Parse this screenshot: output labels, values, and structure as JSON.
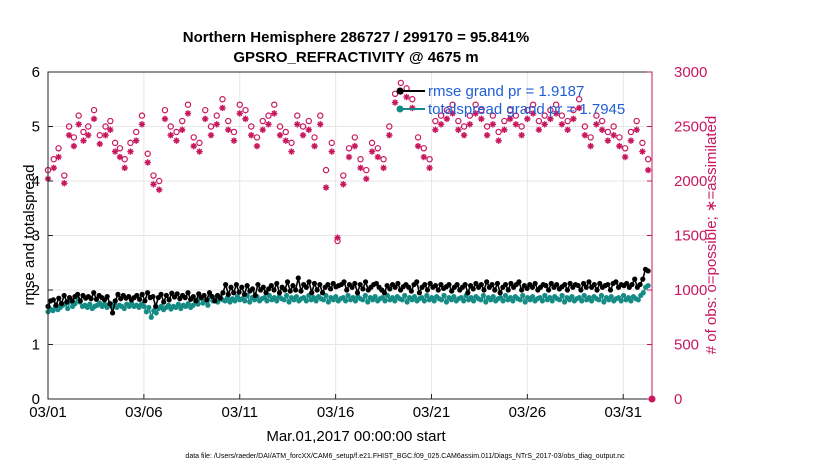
{
  "chart_data": {
    "type": "line",
    "title_line1": "Northern Hemisphere 286727 / 299170 = 95.841%",
    "title_line2": "GPSRO_REFRACTIVITY @ 4675 m",
    "xlabel": "Mar.01,2017 00:00:00 start",
    "ylabel": "rmse and totalspread",
    "ylabel_right": "# of obs: o=possible; ∗=assimilated",
    "footnote": "data file: /Users/raeder/DAI/ATM_forcXX/CAM6_setup/f.e21.FHIST_BGC.f09_025.CAM6assim.011/Diags_NTrS_2017-03/obs_diag_output.nc",
    "xlim": [
      0,
      31.5
    ],
    "ylim": [
      0,
      6
    ],
    "ylim_right": [
      0,
      3000
    ],
    "x_tick_values": [
      0,
      5,
      10,
      15,
      20,
      25,
      30
    ],
    "x_tick_labels": [
      "03/01",
      "03/06",
      "03/11",
      "03/16",
      "03/21",
      "03/26",
      "03/31"
    ],
    "y_ticks": [
      "0",
      "1",
      "2",
      "3",
      "4",
      "5",
      "6"
    ],
    "y_right_ticks": [
      "0",
      "500",
      "1000",
      "1500",
      "2000",
      "2500",
      "3000"
    ],
    "grid": true,
    "legend_position": "top-right",
    "colors": {
      "rmse": "#000000",
      "spread": "#148b84",
      "obs": "#c8175e",
      "legend_text": "#1f5fd6",
      "grid": "#e6e6e6"
    },
    "legend": [
      {
        "name": "rmse grand pr = 1.9187"
      },
      {
        "name": "totalspread grand pr = 1.7945"
      }
    ],
    "series": [
      {
        "name": "rmse",
        "axis": "left",
        "values": [
          1.7,
          1.8,
          1.82,
          1.72,
          1.85,
          1.75,
          1.9,
          1.78,
          1.86,
          1.8,
          1.88,
          1.92,
          1.8,
          1.9,
          1.85,
          1.88,
          1.84,
          1.95,
          1.83,
          1.9,
          1.86,
          1.82,
          1.88,
          1.75,
          1.58,
          1.8,
          1.92,
          1.84,
          1.9,
          1.85,
          1.88,
          1.82,
          1.86,
          1.9,
          1.83,
          1.92,
          1.8,
          1.95,
          1.86,
          1.88,
          1.7,
          1.86,
          1.92,
          1.78,
          1.9,
          1.82,
          1.94,
          1.87,
          1.93,
          1.84,
          1.9,
          1.86,
          1.95,
          1.83,
          1.88,
          1.8,
          1.93,
          1.86,
          1.9,
          1.82,
          1.95,
          1.88,
          1.8,
          1.9,
          1.85,
          1.95,
          2.1,
          1.92,
          2.05,
          1.95,
          2.1,
          1.96,
          2.05,
          1.92,
          2.08,
          1.98,
          2.02,
          1.9,
          2.1,
          2.0,
          2.05,
          1.95,
          2.02,
          2.08,
          2.0,
          2.12,
          1.95,
          2.05,
          2.0,
          2.15,
          1.98,
          2.08,
          2.0,
          2.22,
          1.98,
          2.1,
          2.05,
          2.15,
          1.95,
          2.12,
          2.0,
          2.1,
          1.95,
          2.05,
          2.1,
          2.02,
          2.12,
          2.06,
          2.08,
          2.1,
          2.15,
          2.0,
          2.1,
          2.05,
          2.12,
          1.95,
          2.1,
          2.02,
          2.15,
          2.0,
          2.05,
          2.1,
          2.12,
          2.05,
          2.0,
          1.95,
          2.08,
          2.02,
          2.1,
          2.05,
          2.12,
          2.0,
          2.06,
          2.1,
          2.05,
          1.98,
          2.1,
          2.15,
          1.95,
          2.05,
          2.1,
          2.0,
          2.12,
          2.05,
          2.08,
          2.0,
          2.1,
          2.03,
          2.06,
          2.1,
          1.98,
          2.05,
          2.1,
          2.0,
          2.05,
          2.1,
          1.95,
          2.08,
          2.02,
          2.12,
          2.05,
          2.1,
          2.0,
          2.15,
          2.05,
          2.1,
          2.0,
          2.12,
          1.95,
          2.05,
          2.1,
          2.0,
          2.12,
          2.05,
          2.1,
          2.15,
          2.0,
          2.08,
          2.03,
          2.1,
          2.05,
          2.12,
          2.0,
          2.05,
          2.1,
          2.08,
          2.0,
          2.12,
          2.05,
          2.1,
          2.02,
          2.06,
          2.1,
          2.0,
          2.12,
          2.05,
          2.1,
          2.08,
          2.0,
          2.12,
          2.05,
          2.15,
          2.05,
          2.1,
          2.0,
          2.12,
          2.05,
          2.08,
          2.1,
          2.0,
          2.12,
          2.15,
          2.05,
          2.1,
          2.08,
          2.12,
          2.05,
          2.1,
          2.2,
          2.05,
          2.1,
          2.2,
          2.38,
          2.35
        ]
      },
      {
        "name": "totalspread",
        "axis": "left",
        "values": [
          1.6,
          1.65,
          1.62,
          1.7,
          1.64,
          1.68,
          1.72,
          1.75,
          1.66,
          1.8,
          1.7,
          1.75,
          1.85,
          1.78,
          1.7,
          1.72,
          1.68,
          1.74,
          1.66,
          1.7,
          1.72,
          1.76,
          1.7,
          1.74,
          1.68,
          1.72,
          1.7,
          1.75,
          1.68,
          1.72,
          1.7,
          1.66,
          1.74,
          1.7,
          1.76,
          1.7,
          1.72,
          1.68,
          1.74,
          1.7,
          1.6,
          1.68,
          1.5,
          1.62,
          1.58,
          1.66,
          1.7,
          1.64,
          1.68,
          1.72,
          1.65,
          1.7,
          1.68,
          1.74,
          1.66,
          1.72,
          1.7,
          1.75,
          1.68,
          1.72,
          1.8,
          1.74,
          1.85,
          1.76,
          1.8,
          1.72,
          1.9,
          1.8,
          1.85,
          1.78,
          1.88,
          1.82,
          1.8,
          1.86,
          1.78,
          1.84,
          1.8,
          1.88,
          1.82,
          1.84,
          1.8,
          1.9,
          1.78,
          1.86,
          1.82,
          1.88,
          1.8,
          1.84,
          1.86,
          1.8,
          1.9,
          1.82,
          1.86,
          1.8,
          1.88,
          1.84,
          1.82,
          1.9,
          1.78,
          1.86,
          1.82,
          1.88,
          1.8,
          1.84,
          1.86,
          1.8,
          1.9,
          1.82,
          1.86,
          1.8,
          1.88,
          1.84,
          1.82,
          1.9,
          1.78,
          1.86,
          1.82,
          1.88,
          1.8,
          1.84,
          1.86,
          1.8,
          1.9,
          1.82,
          1.86,
          1.8,
          1.88,
          1.84,
          1.82,
          1.9,
          1.78,
          1.86,
          1.82,
          1.88,
          1.8,
          1.84,
          1.86,
          1.8,
          1.9,
          1.82,
          1.86,
          1.8,
          1.88,
          1.84,
          1.82,
          1.9,
          1.78,
          1.86,
          1.82,
          1.88,
          1.8,
          1.84,
          1.86,
          1.8,
          1.9,
          1.82,
          1.86,
          1.8,
          1.88,
          1.84,
          1.82,
          1.9,
          1.78,
          1.86,
          1.82,
          1.88,
          1.8,
          1.84,
          1.86,
          1.8,
          1.9,
          1.82,
          1.86,
          1.8,
          1.88,
          1.84,
          1.82,
          1.9,
          1.78,
          1.86,
          1.82,
          1.88,
          1.8,
          1.84,
          1.86,
          1.8,
          1.9,
          1.82,
          1.86,
          1.8,
          1.88,
          1.84,
          1.82,
          1.9,
          1.78,
          1.86,
          1.82,
          1.88,
          1.8,
          1.84,
          1.86,
          1.8,
          1.9,
          1.82,
          1.86,
          1.8,
          1.88,
          1.84,
          1.82,
          1.9,
          1.78,
          1.86,
          1.82,
          1.88,
          1.8,
          1.84,
          1.86,
          1.8,
          1.9,
          1.82,
          1.86,
          1.8,
          1.88,
          1.84,
          1.82,
          1.9,
          1.78,
          1.86,
          1.82,
          1.88,
          1.8,
          1.84,
          1.86,
          1.8,
          1.9,
          1.82,
          1.86,
          1.8,
          1.88,
          1.84,
          1.82,
          1.9,
          1.95,
          2.05,
          2.08
        ]
      },
      {
        "name": "obs_possible",
        "axis": "right",
        "marker": "o",
        "x": [
          0.0,
          0.3,
          0.55,
          0.85,
          1.1,
          1.35,
          1.6,
          1.85,
          2.1,
          2.4,
          2.7,
          3.0,
          3.25,
          3.5,
          3.75,
          4.0,
          4.3,
          4.6,
          4.9,
          5.2,
          5.5,
          5.8,
          6.1,
          6.4,
          6.7,
          7.0,
          7.3,
          7.6,
          7.9,
          8.2,
          8.5,
          8.8,
          9.1,
          9.4,
          9.7,
          10.0,
          10.3,
          10.6,
          10.9,
          11.2,
          11.5,
          11.8,
          12.1,
          12.4,
          12.7,
          13.0,
          13.3,
          13.6,
          13.9,
          14.2,
          14.5,
          14.8,
          15.1,
          15.4,
          15.7,
          16.0,
          16.3,
          16.6,
          16.9,
          17.2,
          17.5,
          17.8,
          18.1,
          18.4,
          18.7,
          19.0,
          19.3,
          19.6,
          19.9,
          20.2,
          20.5,
          20.8,
          21.1,
          21.4,
          21.7,
          22.0,
          22.3,
          22.6,
          22.9,
          23.2,
          23.5,
          23.8,
          24.1,
          24.4,
          24.7,
          25.0,
          25.3,
          25.6,
          25.9,
          26.2,
          26.5,
          26.8,
          27.1,
          27.4,
          27.7,
          28.0,
          28.3,
          28.6,
          28.9,
          29.2,
          29.5,
          29.8,
          30.1,
          30.4,
          30.7,
          31.0,
          31.3
        ],
        "values": [
          2100,
          2200,
          2300,
          2050,
          2500,
          2400,
          2600,
          2450,
          2500,
          2650,
          2420,
          2500,
          2550,
          2350,
          2300,
          2200,
          2350,
          2450,
          2600,
          2250,
          2050,
          2000,
          2650,
          2500,
          2450,
          2550,
          2700,
          2400,
          2350,
          2650,
          2500,
          2600,
          2750,
          2550,
          2450,
          2700,
          2650,
          2500,
          2400,
          2550,
          2600,
          2700,
          2500,
          2450,
          2350,
          2600,
          2500,
          2550,
          2400,
          2600,
          2100,
          2350,
          1450,
          2050,
          2300,
          2400,
          2200,
          2100,
          2350,
          2300,
          2200,
          2500,
          2800,
          2900,
          2850,
          2750,
          2400,
          2300,
          2200,
          2550,
          2600,
          2650,
          2700,
          2550,
          2500,
          2600,
          2700,
          2650,
          2500,
          2600,
          2450,
          2550,
          2650,
          2600,
          2500,
          2650,
          2700,
          2550,
          2600,
          2650,
          2700,
          2600,
          2550,
          2650,
          2750,
          2500,
          2400,
          2600,
          2550,
          2450,
          2500,
          2400,
          2300,
          2450,
          2550,
          2350,
          2200
        ]
      },
      {
        "name": "obs_assimilated",
        "axis": "right",
        "marker": "*",
        "x": [
          0.0,
          0.3,
          0.55,
          0.85,
          1.1,
          1.35,
          1.6,
          1.85,
          2.1,
          2.4,
          2.7,
          3.0,
          3.25,
          3.5,
          3.75,
          4.0,
          4.3,
          4.6,
          4.9,
          5.2,
          5.5,
          5.8,
          6.1,
          6.4,
          6.7,
          7.0,
          7.3,
          7.6,
          7.9,
          8.2,
          8.5,
          8.8,
          9.1,
          9.4,
          9.7,
          10.0,
          10.3,
          10.6,
          10.9,
          11.2,
          11.5,
          11.8,
          12.1,
          12.4,
          12.7,
          13.0,
          13.3,
          13.6,
          13.9,
          14.2,
          14.5,
          14.8,
          15.1,
          15.4,
          15.7,
          16.0,
          16.3,
          16.6,
          16.9,
          17.2,
          17.5,
          17.8,
          18.1,
          18.4,
          18.7,
          19.0,
          19.3,
          19.6,
          19.9,
          20.2,
          20.5,
          20.8,
          21.1,
          21.4,
          21.7,
          22.0,
          22.3,
          22.6,
          22.9,
          23.2,
          23.5,
          23.8,
          24.1,
          24.4,
          24.7,
          25.0,
          25.3,
          25.6,
          25.9,
          26.2,
          26.5,
          26.8,
          27.1,
          27.4,
          27.7,
          28.0,
          28.3,
          28.6,
          28.9,
          29.2,
          29.5,
          29.8,
          30.1,
          30.4,
          30.7,
          31.0,
          31.3
        ],
        "values": [
          2020,
          2120,
          2220,
          1980,
          2420,
          2320,
          2520,
          2370,
          2420,
          2570,
          2340,
          2420,
          2470,
          2270,
          2220,
          2120,
          2270,
          2370,
          2520,
          2170,
          1970,
          1920,
          2570,
          2420,
          2370,
          2470,
          2620,
          2320,
          2270,
          2570,
          2420,
          2520,
          2670,
          2470,
          2370,
          2620,
          2570,
          2420,
          2320,
          2470,
          2520,
          2620,
          2420,
          2370,
          2270,
          2520,
          2420,
          2470,
          2320,
          2520,
          1940,
          2270,
          1480,
          1970,
          2220,
          2320,
          2120,
          2020,
          2270,
          2220,
          2120,
          2420,
          2720,
          2820,
          2770,
          2670,
          2320,
          2220,
          2120,
          2470,
          2520,
          2570,
          2620,
          2470,
          2420,
          2520,
          2620,
          2570,
          2420,
          2520,
          2370,
          2470,
          2570,
          2520,
          2420,
          2570,
          2620,
          2470,
          2520,
          2570,
          2620,
          2520,
          2470,
          2570,
          2670,
          2420,
          2320,
          2520,
          2470,
          2370,
          2420,
          2320,
          2220,
          2370,
          2470,
          2270,
          2100
        ]
      }
    ]
  }
}
